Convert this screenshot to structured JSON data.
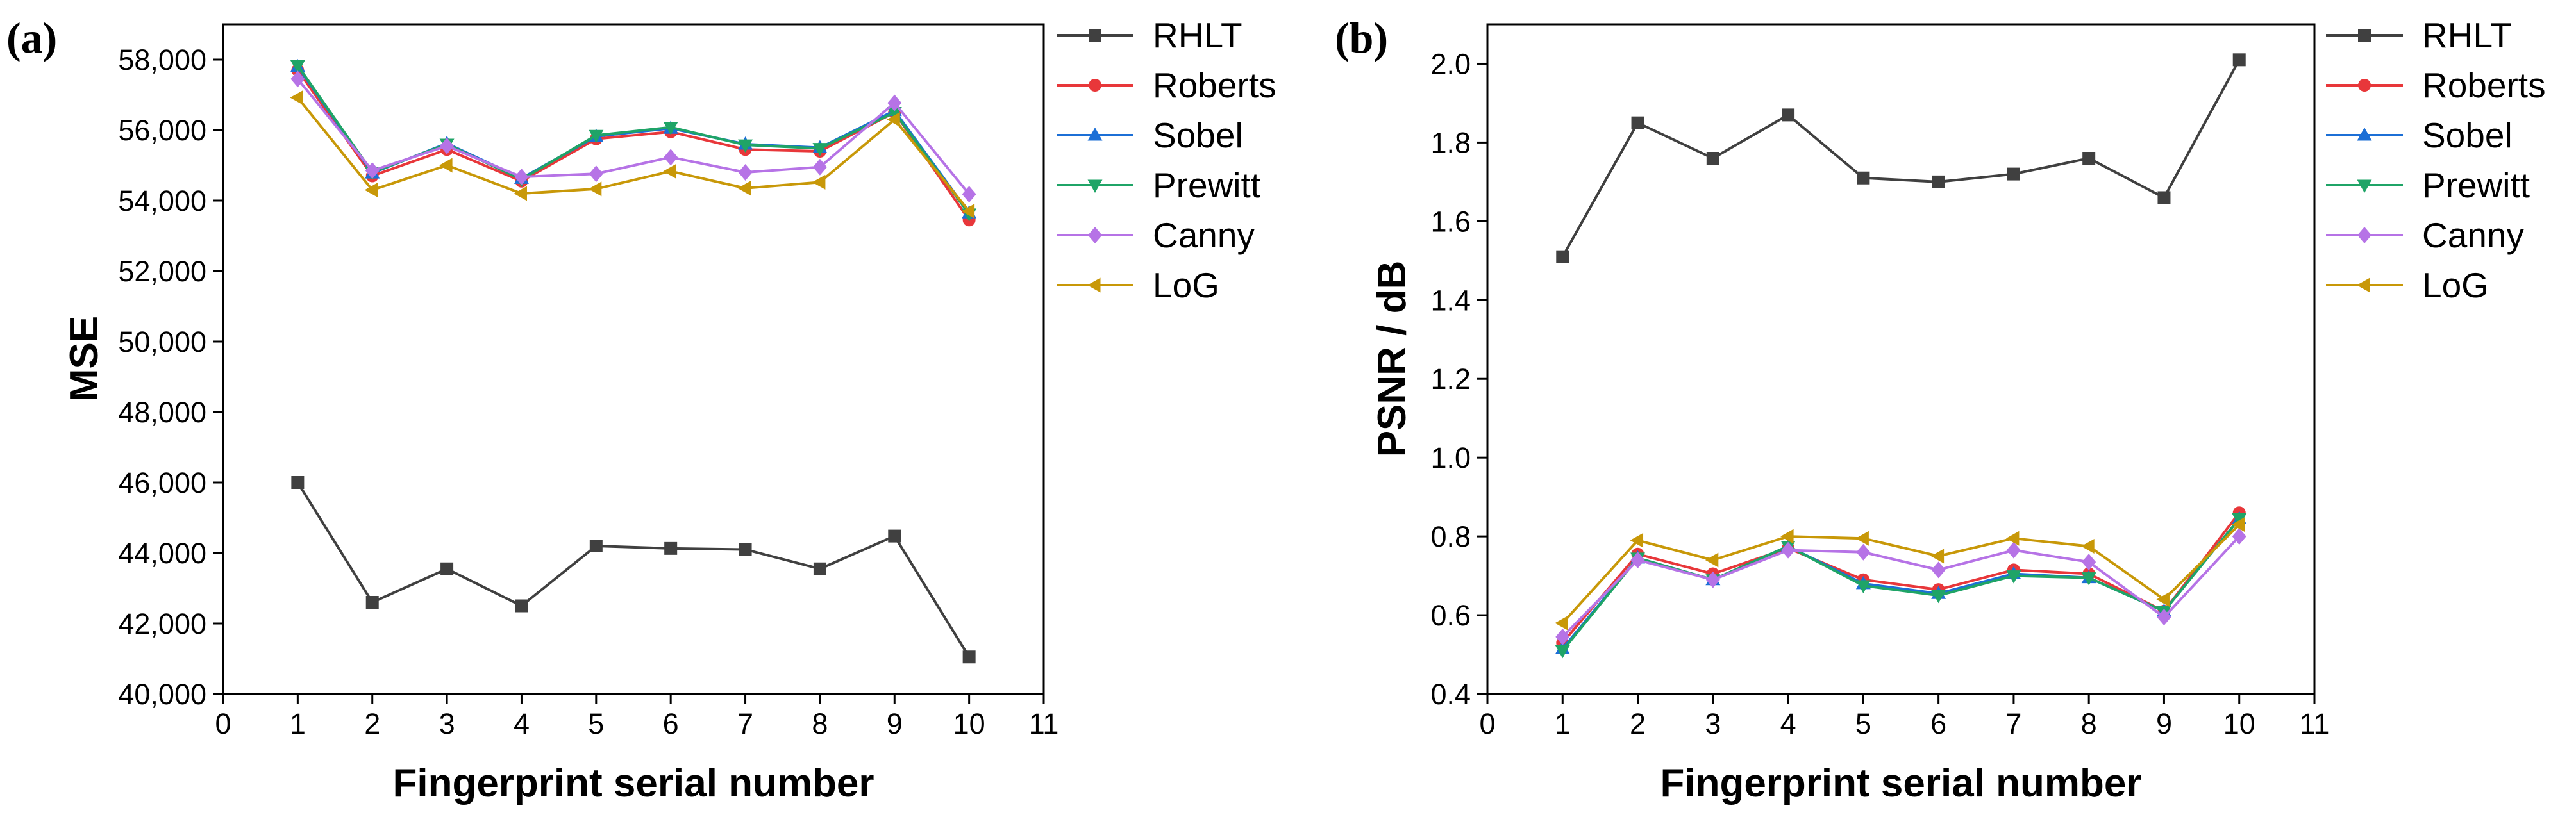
{
  "chart_data": [
    {
      "type": "line",
      "panel_label": "(a)",
      "xlabel": "Fingerprint serial number",
      "ylabel": "MSE",
      "xlim": [
        0,
        11
      ],
      "ylim": [
        40000,
        59000
      ],
      "x_ticks": [
        0,
        1,
        2,
        3,
        4,
        5,
        6,
        7,
        8,
        9,
        10,
        11
      ],
      "x_tick_labels": [
        "0",
        "1",
        "2",
        "3",
        "4",
        "5",
        "6",
        "7",
        "8",
        "9",
        "10",
        "11"
      ],
      "y_ticks": [
        40000,
        42000,
        44000,
        46000,
        48000,
        50000,
        52000,
        54000,
        56000,
        58000
      ],
      "y_tick_labels": [
        "40,000",
        "42,000",
        "44,000",
        "46,000",
        "48,000",
        "50,000",
        "52,000",
        "54,000",
        "56,000",
        "58,000"
      ],
      "grid": false,
      "legend_position": "outside right",
      "x": [
        1,
        2,
        3,
        4,
        5,
        6,
        7,
        8,
        9,
        10
      ],
      "series": [
        {
          "name": "RHLT",
          "color": "#404040",
          "marker": "square",
          "values": [
            46000,
            42600,
            43550,
            42500,
            44200,
            44130,
            44100,
            43550,
            44480,
            41050
          ]
        },
        {
          "name": "Roberts",
          "color": "#e8373a",
          "marker": "circle",
          "values": [
            57700,
            54700,
            55450,
            54550,
            55750,
            55950,
            55450,
            55400,
            56500,
            53450
          ]
        },
        {
          "name": "Sobel",
          "color": "#1c6fd6",
          "marker": "triangle-up",
          "values": [
            57800,
            54780,
            55620,
            54630,
            55820,
            56050,
            55600,
            55500,
            56550,
            53650
          ]
        },
        {
          "name": "Prewitt",
          "color": "#1fa467",
          "marker": "triangle-down",
          "values": [
            57830,
            54800,
            55600,
            54600,
            55850,
            56080,
            55580,
            55480,
            56500,
            53620
          ]
        },
        {
          "name": "Canny",
          "color": "#b673e6",
          "marker": "diamond",
          "values": [
            57450,
            54850,
            55550,
            54670,
            54760,
            55230,
            54800,
            54950,
            56770,
            54180
          ]
        },
        {
          "name": "LoG",
          "color": "#c89808",
          "marker": "triangle-left",
          "values": [
            56920,
            54300,
            55000,
            54200,
            54330,
            54830,
            54350,
            54520,
            56300,
            53700
          ]
        }
      ]
    },
    {
      "type": "line",
      "panel_label": "(b)",
      "xlabel": "Fingerprint serial number",
      "ylabel": "PSNR / dB",
      "xlim": [
        0,
        11
      ],
      "ylim": [
        0.4,
        2.1
      ],
      "x_ticks": [
        0,
        1,
        2,
        3,
        4,
        5,
        6,
        7,
        8,
        9,
        10,
        11
      ],
      "x_tick_labels": [
        "0",
        "1",
        "2",
        "3",
        "4",
        "5",
        "6",
        "7",
        "8",
        "9",
        "10",
        "11"
      ],
      "y_ticks": [
        0.4,
        0.6,
        0.8,
        1.0,
        1.2,
        1.4,
        1.6,
        1.8,
        2.0
      ],
      "y_tick_labels": [
        "0.4",
        "0.6",
        "0.8",
        "1.0",
        "1.2",
        "1.4",
        "1.6",
        "1.8",
        "2.0"
      ],
      "grid": false,
      "legend_position": "outside right",
      "x": [
        1,
        2,
        3,
        4,
        5,
        6,
        7,
        8,
        9,
        10
      ],
      "series": [
        {
          "name": "RHLT",
          "color": "#404040",
          "marker": "square",
          "values": [
            1.51,
            1.85,
            1.76,
            1.87,
            1.71,
            1.7,
            1.72,
            1.76,
            1.66,
            2.01
          ]
        },
        {
          "name": "Roberts",
          "color": "#e8373a",
          "marker": "circle",
          "values": [
            0.53,
            0.755,
            0.705,
            0.77,
            0.69,
            0.665,
            0.715,
            0.705,
            0.61,
            0.86
          ]
        },
        {
          "name": "Sobel",
          "color": "#1c6fd6",
          "marker": "triangle-up",
          "values": [
            0.515,
            0.745,
            0.69,
            0.775,
            0.68,
            0.655,
            0.705,
            0.695,
            0.61,
            0.845
          ]
        },
        {
          "name": "Prewitt",
          "color": "#1fa467",
          "marker": "triangle-down",
          "values": [
            0.51,
            0.745,
            0.69,
            0.775,
            0.675,
            0.65,
            0.7,
            0.695,
            0.61,
            0.845
          ]
        },
        {
          "name": "Canny",
          "color": "#b673e6",
          "marker": "diamond",
          "values": [
            0.545,
            0.74,
            0.69,
            0.765,
            0.76,
            0.715,
            0.765,
            0.735,
            0.595,
            0.8
          ]
        },
        {
          "name": "LoG",
          "color": "#c89808",
          "marker": "triangle-left",
          "values": [
            0.58,
            0.79,
            0.74,
            0.8,
            0.795,
            0.75,
            0.795,
            0.775,
            0.64,
            0.83
          ]
        }
      ]
    }
  ]
}
